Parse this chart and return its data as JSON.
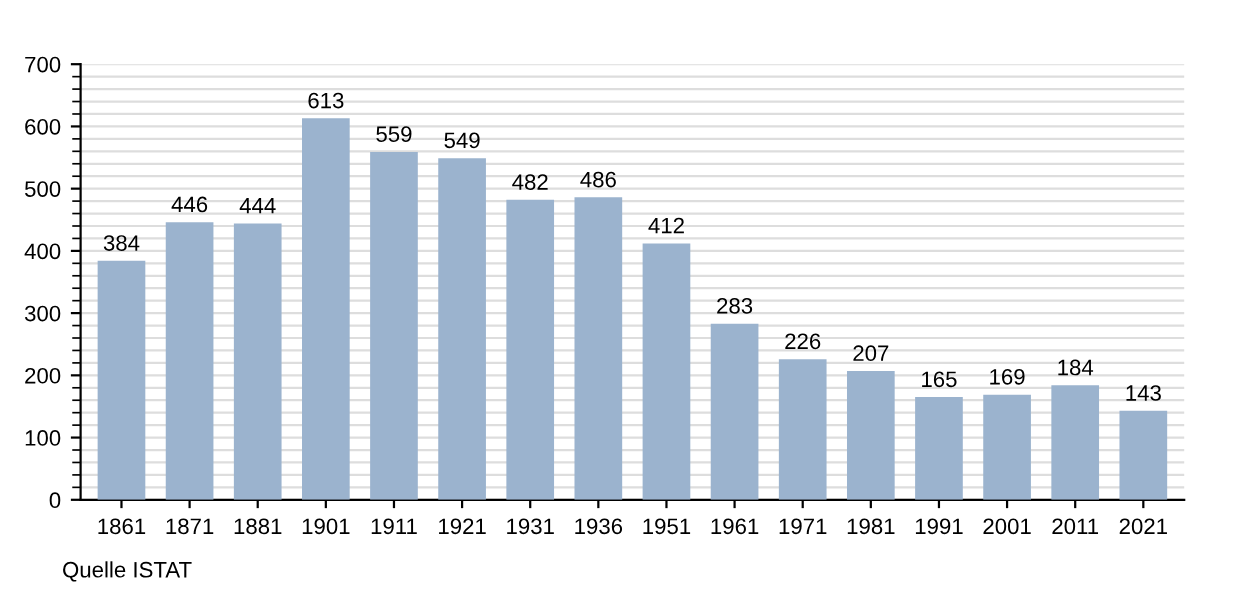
{
  "chart_data": {
    "type": "bar",
    "categories": [
      "1861",
      "1871",
      "1881",
      "1901",
      "1911",
      "1921",
      "1931",
      "1936",
      "1951",
      "1961",
      "1971",
      "1981",
      "1991",
      "2001",
      "2011",
      "2021"
    ],
    "values": [
      384,
      446,
      444,
      613,
      559,
      549,
      482,
      486,
      412,
      283,
      226,
      207,
      165,
      169,
      184,
      143
    ],
    "color": "#9bb3ce",
    "data_labels": true,
    "ylim": [
      0,
      700
    ],
    "yticks": [
      0,
      100,
      200,
      300,
      400,
      500,
      600,
      700
    ],
    "grid": "y",
    "annotations": [
      "Quelle ISTAT"
    ]
  }
}
